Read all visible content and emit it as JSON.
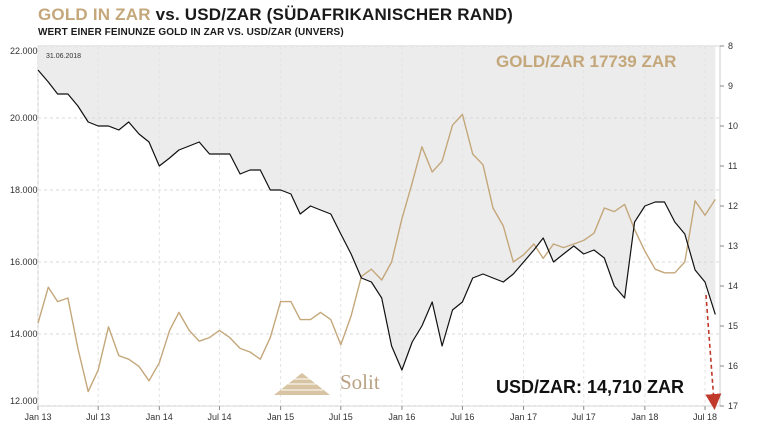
{
  "header": {
    "title_gold": "GOLD IN ZAR",
    "title_rest": "vs. USD/ZAR (SÜDAFRIKANISCHER RAND)",
    "subtitle": "WERT EINER FEINUNZE GOLD IN ZAR VS. USD/ZAR (UNVERS)"
  },
  "colors": {
    "gold": "#c4a77a",
    "usd_zar": "#111111",
    "shade": "#ececec",
    "arrow": "#c0392b"
  },
  "chart_data": {
    "type": "line",
    "date_label": "31.06.2018",
    "x_ticks": [
      "Jan 13",
      "Jul 13",
      "Jan 14",
      "Jul 14",
      "Jan 15",
      "Jul 15",
      "Jan 16",
      "Jul 16",
      "Jan 17",
      "Jul 17",
      "Jan 18",
      "Jul 18"
    ],
    "y_left": {
      "ticks": [
        "22.000",
        "20.000",
        "18.000",
        "16.000",
        "14.000",
        "12.000"
      ],
      "ylim": [
        12000,
        22000
      ]
    },
    "y_right": {
      "ticks": [
        "8",
        "9",
        "10",
        "11",
        "12",
        "13",
        "14",
        "15",
        "16",
        "17"
      ],
      "ylim": [
        8,
        17
      ],
      "inverted": true
    },
    "annotations": {
      "gold_label": "GOLD/ZAR 17739 ZAR",
      "usd_label": "USD/ZAR: 14,710 ZAR",
      "logo_text": "Solit"
    },
    "series": [
      {
        "axis": "left",
        "points": [
          [
            "2013-01-01",
            14300
          ],
          [
            "2013-02-01",
            15300
          ],
          [
            "2013-03-01",
            14900
          ],
          [
            "2013-04-01",
            15000
          ],
          [
            "2013-05-01",
            13600
          ],
          [
            "2013-06-01",
            12400
          ],
          [
            "2013-07-01",
            13000
          ],
          [
            "2013-08-01",
            14200
          ],
          [
            "2013-09-01",
            13400
          ],
          [
            "2013-10-01",
            13300
          ],
          [
            "2013-11-01",
            13100
          ],
          [
            "2013-12-01",
            12700
          ],
          [
            "2014-01-01",
            13200
          ],
          [
            "2014-02-01",
            14100
          ],
          [
            "2014-03-01",
            14600
          ],
          [
            "2014-04-01",
            14100
          ],
          [
            "2014-05-01",
            13800
          ],
          [
            "2014-06-01",
            13900
          ],
          [
            "2014-07-01",
            14100
          ],
          [
            "2014-08-01",
            13900
          ],
          [
            "2014-09-01",
            13600
          ],
          [
            "2014-10-01",
            13500
          ],
          [
            "2014-11-01",
            13300
          ],
          [
            "2014-12-01",
            13900
          ],
          [
            "2015-01-01",
            14900
          ],
          [
            "2015-02-01",
            14900
          ],
          [
            "2015-03-01",
            14400
          ],
          [
            "2015-04-01",
            14400
          ],
          [
            "2015-05-01",
            14600
          ],
          [
            "2015-06-01",
            14400
          ],
          [
            "2015-07-01",
            13700
          ],
          [
            "2015-08-01",
            14500
          ],
          [
            "2015-09-01",
            15600
          ],
          [
            "2015-10-01",
            15800
          ],
          [
            "2015-11-01",
            15500
          ],
          [
            "2015-12-01",
            16000
          ],
          [
            "2016-01-01",
            17200
          ],
          [
            "2016-02-01",
            18200
          ],
          [
            "2016-03-01",
            19200
          ],
          [
            "2016-04-01",
            18500
          ],
          [
            "2016-05-01",
            18800
          ],
          [
            "2016-06-01",
            19800
          ],
          [
            "2016-07-01",
            20100
          ],
          [
            "2016-08-01",
            19000
          ],
          [
            "2016-09-01",
            18700
          ],
          [
            "2016-10-01",
            17500
          ],
          [
            "2016-11-01",
            17000
          ],
          [
            "2016-12-01",
            16000
          ],
          [
            "2017-01-01",
            16200
          ],
          [
            "2017-02-01",
            16500
          ],
          [
            "2017-03-01",
            16100
          ],
          [
            "2017-04-01",
            16500
          ],
          [
            "2017-05-01",
            16400
          ],
          [
            "2017-06-01",
            16500
          ],
          [
            "2017-07-01",
            16600
          ],
          [
            "2017-08-01",
            16800
          ],
          [
            "2017-09-01",
            17500
          ],
          [
            "2017-10-01",
            17400
          ],
          [
            "2017-11-01",
            17600
          ],
          [
            "2017-12-01",
            16900
          ],
          [
            "2018-01-01",
            16300
          ],
          [
            "2018-02-01",
            15800
          ],
          [
            "2018-03-01",
            15700
          ],
          [
            "2018-04-01",
            15700
          ],
          [
            "2018-05-01",
            16000
          ],
          [
            "2018-06-01",
            17700
          ],
          [
            "2018-07-01",
            17300
          ],
          [
            "2018-08-01",
            17739
          ]
        ]
      },
      {
        "axis": "right",
        "points": [
          [
            "2013-01-01",
            8.6
          ],
          [
            "2013-02-01",
            8.9
          ],
          [
            "2013-03-01",
            9.2
          ],
          [
            "2013-04-01",
            9.2
          ],
          [
            "2013-05-01",
            9.5
          ],
          [
            "2013-06-01",
            9.9
          ],
          [
            "2013-07-01",
            10.0
          ],
          [
            "2013-08-01",
            10.0
          ],
          [
            "2013-09-01",
            10.1
          ],
          [
            "2013-10-01",
            9.9
          ],
          [
            "2013-11-01",
            10.2
          ],
          [
            "2013-12-01",
            10.4
          ],
          [
            "2014-01-01",
            11.0
          ],
          [
            "2014-02-01",
            10.8
          ],
          [
            "2014-03-01",
            10.6
          ],
          [
            "2014-04-01",
            10.5
          ],
          [
            "2014-05-01",
            10.4
          ],
          [
            "2014-06-01",
            10.7
          ],
          [
            "2014-07-01",
            10.7
          ],
          [
            "2014-08-01",
            10.7
          ],
          [
            "2014-09-01",
            11.2
          ],
          [
            "2014-10-01",
            11.1
          ],
          [
            "2014-11-01",
            11.1
          ],
          [
            "2014-12-01",
            11.6
          ],
          [
            "2015-01-01",
            11.6
          ],
          [
            "2015-02-01",
            11.7
          ],
          [
            "2015-03-01",
            12.2
          ],
          [
            "2015-04-01",
            12.0
          ],
          [
            "2015-05-01",
            12.1
          ],
          [
            "2015-06-01",
            12.2
          ],
          [
            "2015-07-01",
            12.7
          ],
          [
            "2015-08-01",
            13.2
          ],
          [
            "2015-09-01",
            13.8
          ],
          [
            "2015-10-01",
            13.9
          ],
          [
            "2015-11-01",
            14.3
          ],
          [
            "2015-12-01",
            15.5
          ],
          [
            "2016-01-01",
            16.1
          ],
          [
            "2016-02-01",
            15.4
          ],
          [
            "2016-03-01",
            15.0
          ],
          [
            "2016-04-01",
            14.4
          ],
          [
            "2016-05-01",
            15.5
          ],
          [
            "2016-06-01",
            14.6
          ],
          [
            "2016-07-01",
            14.4
          ],
          [
            "2016-08-01",
            13.8
          ],
          [
            "2016-09-01",
            13.7
          ],
          [
            "2016-10-01",
            13.8
          ],
          [
            "2016-11-01",
            13.9
          ],
          [
            "2016-12-01",
            13.7
          ],
          [
            "2017-01-01",
            13.4
          ],
          [
            "2017-02-01",
            13.1
          ],
          [
            "2017-03-01",
            12.8
          ],
          [
            "2017-04-01",
            13.4
          ],
          [
            "2017-05-01",
            13.2
          ],
          [
            "2017-06-01",
            13.0
          ],
          [
            "2017-07-01",
            13.2
          ],
          [
            "2017-08-01",
            13.1
          ],
          [
            "2017-09-01",
            13.3
          ],
          [
            "2017-10-01",
            14.0
          ],
          [
            "2017-11-01",
            14.3
          ],
          [
            "2017-12-01",
            12.4
          ],
          [
            "2018-01-01",
            12.0
          ],
          [
            "2018-02-01",
            11.9
          ],
          [
            "2018-03-01",
            11.9
          ],
          [
            "2018-04-01",
            12.4
          ],
          [
            "2018-05-01",
            12.7
          ],
          [
            "2018-06-01",
            13.6
          ],
          [
            "2018-07-01",
            13.9
          ],
          [
            "2018-08-01",
            14.71
          ]
        ]
      }
    ]
  }
}
